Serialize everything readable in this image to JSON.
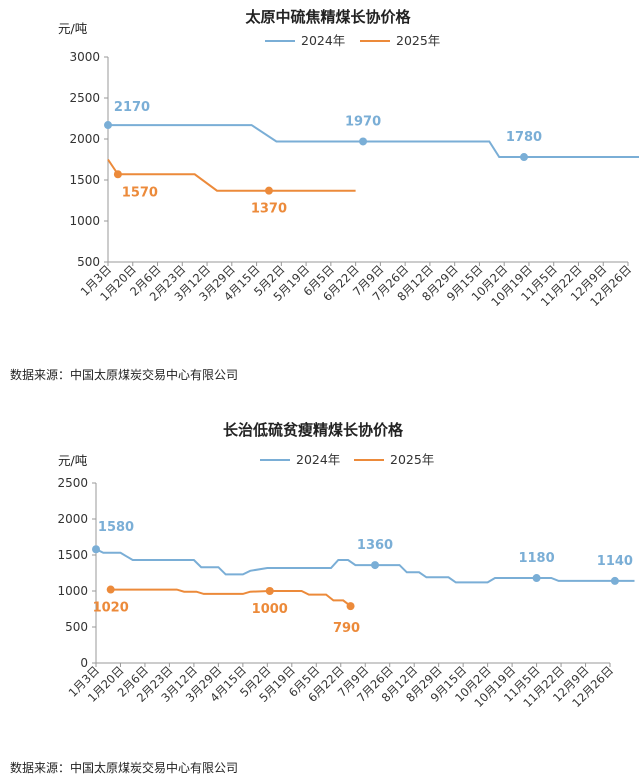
{
  "chart_data": [
    {
      "type": "line",
      "title": "太原中硫焦精煤长协价格",
      "ylabel": "元/吨",
      "ylim": [
        500,
        3000
      ],
      "yticks": [
        500,
        1000,
        1500,
        2000,
        2500,
        3000
      ],
      "categories": [
        "1月3日",
        "1月20日",
        "2月6日",
        "2月23日",
        "3月12日",
        "3月29日",
        "4月15日",
        "5月2日",
        "5月19日",
        "6月5日",
        "6月22日",
        "7月9日",
        "7月26日",
        "8月12日",
        "8月29日",
        "9月15日",
        "10月2日",
        "10月19日",
        "11月5日",
        "11月22日",
        "12月9日",
        "12月26日"
      ],
      "legend_position": "top",
      "grid": false,
      "series": [
        {
          "name": "2024年",
          "color": "#7aaed6",
          "points": [
            [
              0,
              2170
            ],
            [
              5.8,
              2170
            ],
            [
              6.8,
              1970
            ],
            [
              15.4,
              1970
            ],
            [
              15.8,
              1780
            ],
            [
              22,
              1780
            ]
          ],
          "markers": [
            [
              0,
              2170
            ],
            [
              10.3,
              1970
            ],
            [
              16.8,
              1780
            ]
          ],
          "labels": [
            {
              "x": 0,
              "y": 2170,
              "text": "2170"
            },
            {
              "x": 10.3,
              "y": 1970,
              "text": "1970"
            },
            {
              "x": 16.8,
              "y": 1780,
              "text": "1780"
            }
          ]
        },
        {
          "name": "2025年",
          "color": "#ec8a3a",
          "points": [
            [
              0,
              1750
            ],
            [
              0.4,
              1570
            ],
            [
              3.5,
              1570
            ],
            [
              4.4,
              1370
            ],
            [
              10,
              1370
            ]
          ],
          "markers": [
            [
              0.4,
              1570
            ],
            [
              6.5,
              1370
            ]
          ],
          "labels": [
            {
              "x": 0.4,
              "y": 1570,
              "text": "1570"
            },
            {
              "x": 6.5,
              "y": 1370,
              "text": "1370"
            }
          ]
        }
      ],
      "source": "数据来源：中国太原煤炭交易中心有限公司"
    },
    {
      "type": "line",
      "title": "长治低硫贫瘦精煤长协价格",
      "ylabel": "元/吨",
      "ylim": [
        0,
        2500
      ],
      "yticks": [
        0,
        500,
        1000,
        1500,
        2000,
        2500
      ],
      "categories": [
        "1月3日",
        "1月20日",
        "2月6日",
        "2月23日",
        "3月12日",
        "3月29日",
        "4月15日",
        "5月2日",
        "5月19日",
        "6月5日",
        "6月22日",
        "7月9日",
        "7月26日",
        "8月12日",
        "8月29日",
        "9月15日",
        "10月2日",
        "10月19日",
        "11月5日",
        "11月22日",
        "12月9日",
        "12月26日"
      ],
      "legend_position": "top",
      "grid": false,
      "series": [
        {
          "name": "2024年",
          "color": "#7aaed6",
          "points": [
            [
              0,
              1580
            ],
            [
              0.3,
              1530
            ],
            [
              1,
              1530
            ],
            [
              1.5,
              1430
            ],
            [
              4,
              1430
            ],
            [
              4.3,
              1330
            ],
            [
              5,
              1330
            ],
            [
              5.3,
              1230
            ],
            [
              6,
              1230
            ],
            [
              6.3,
              1280
            ],
            [
              7,
              1320
            ],
            [
              9.6,
              1320
            ],
            [
              9.9,
              1430
            ],
            [
              10.3,
              1430
            ],
            [
              10.6,
              1360
            ],
            [
              12.4,
              1360
            ],
            [
              12.7,
              1260
            ],
            [
              13.2,
              1260
            ],
            [
              13.5,
              1190
            ],
            [
              14.4,
              1190
            ],
            [
              14.7,
              1120
            ],
            [
              16,
              1120
            ],
            [
              16.3,
              1180
            ],
            [
              17,
              1180
            ],
            [
              18.6,
              1180
            ],
            [
              18.9,
              1140
            ],
            [
              22,
              1140
            ]
          ],
          "markers": [
            [
              0,
              1580
            ],
            [
              11.4,
              1360
            ],
            [
              18,
              1180
            ],
            [
              21.2,
              1140
            ]
          ],
          "labels": [
            {
              "x": 0,
              "y": 1580,
              "text": "1580"
            },
            {
              "x": 11.4,
              "y": 1360,
              "text": "1360"
            },
            {
              "x": 18,
              "y": 1180,
              "text": "1180"
            },
            {
              "x": 21.2,
              "y": 1140,
              "text": "1140"
            }
          ]
        },
        {
          "name": "2025年",
          "color": "#ec8a3a",
          "points": [
            [
              0.6,
              1020
            ],
            [
              3.3,
              1020
            ],
            [
              3.6,
              990
            ],
            [
              4.1,
              990
            ],
            [
              4.4,
              960
            ],
            [
              6,
              960
            ],
            [
              6.3,
              990
            ],
            [
              7.1,
              1000
            ],
            [
              8.4,
              1000
            ],
            [
              8.7,
              950
            ],
            [
              9.4,
              950
            ],
            [
              9.7,
              870
            ],
            [
              10.1,
              870
            ],
            [
              10.4,
              790
            ]
          ],
          "markers": [
            [
              0.6,
              1020
            ],
            [
              7.1,
              1000
            ],
            [
              10.4,
              790
            ]
          ],
          "labels": [
            {
              "x": 0.6,
              "y": 1020,
              "text": "1020"
            },
            {
              "x": 7.1,
              "y": 1000,
              "text": "1000"
            },
            {
              "x": 10.4,
              "y": 790,
              "text": "790"
            }
          ]
        }
      ],
      "source": "数据来源：中国太原煤炭交易中心有限公司"
    }
  ]
}
